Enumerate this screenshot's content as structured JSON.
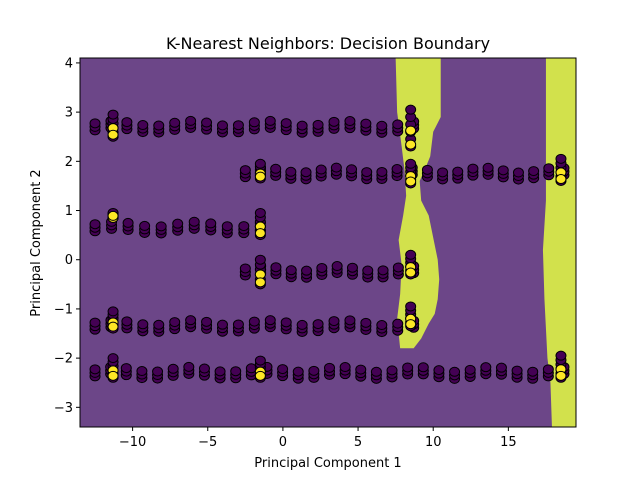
{
  "chart_data": {
    "type": "scatter",
    "title": "K-Nearest Neighbors: Decision Boundary",
    "xlabel": "Principal Component 1",
    "ylabel": "Principal Component 2",
    "xlim": [
      -13.5,
      19.5
    ],
    "ylim": [
      -3.4,
      4.1
    ],
    "x_ticks": [
      -10,
      -5,
      0,
      5,
      10,
      15
    ],
    "y_ticks": [
      -3,
      -2,
      -1,
      0,
      1,
      2,
      3,
      4
    ],
    "x_tick_labels": [
      "−10",
      "−5",
      "0",
      "5",
      "10",
      "15"
    ],
    "y_tick_labels": [
      "−3",
      "−2",
      "−1",
      "0",
      "1",
      "2",
      "3",
      "4"
    ],
    "grid": false,
    "background_region_color": "#6c4688",
    "boundary_region_color": "#d2e14c",
    "class_colors": {
      "0": "#440154",
      "1": "#fde725"
    },
    "decision_regions": [
      {
        "class": 1,
        "polygon": [
          [
            7.5,
            4.1
          ],
          [
            10.5,
            4.1
          ],
          [
            10.5,
            2.9
          ],
          [
            10.0,
            2.6
          ],
          [
            9.8,
            2.1
          ],
          [
            9.4,
            1.8
          ],
          [
            9.1,
            1.6
          ],
          [
            9.2,
            1.2
          ],
          [
            9.7,
            0.9
          ],
          [
            9.9,
            0.6
          ],
          [
            10.1,
            0.3
          ],
          [
            10.3,
            0.0
          ],
          [
            10.4,
            -0.4
          ],
          [
            10.3,
            -0.8
          ],
          [
            10.1,
            -1.1
          ],
          [
            9.7,
            -1.3
          ],
          [
            9.2,
            -1.6
          ],
          [
            8.7,
            -1.8
          ],
          [
            7.8,
            -1.8
          ],
          [
            7.6,
            -1.2
          ],
          [
            7.8,
            -0.7
          ],
          [
            7.9,
            -0.1
          ],
          [
            7.7,
            0.4
          ],
          [
            8.0,
            0.9
          ],
          [
            8.2,
            1.3
          ],
          [
            8.1,
            1.8
          ],
          [
            7.9,
            2.3
          ],
          [
            7.6,
            3.0
          ]
        ]
      },
      {
        "class": 1,
        "polygon": [
          [
            17.5,
            4.1
          ],
          [
            19.5,
            4.1
          ],
          [
            19.5,
            -3.4
          ],
          [
            17.9,
            -3.4
          ],
          [
            17.8,
            -2.5
          ],
          [
            17.6,
            -2.0
          ],
          [
            17.4,
            -0.8
          ],
          [
            17.3,
            0.2
          ],
          [
            17.5,
            1.2
          ],
          [
            17.5,
            2.5
          ]
        ]
      }
    ],
    "series": [
      {
        "name": "",
        "row_y": 2.7,
        "x_start": -12.5,
        "x_end": 8.7,
        "points": 21,
        "amplitude": 0.12
      },
      {
        "name": "",
        "row_y": 1.75,
        "x_start": -2.5,
        "x_end": 18.7,
        "points": 22,
        "amplitude": 0.12
      },
      {
        "name": "",
        "row_y": 0.65,
        "x_start": -12.5,
        "x_end": -1.5,
        "points": 11,
        "amplitude": 0.12
      },
      {
        "name": "",
        "row_y": -0.25,
        "x_start": -2.5,
        "x_end": 8.7,
        "points": 12,
        "amplitude": 0.12
      },
      {
        "name": "",
        "row_y": -1.35,
        "x_start": -12.5,
        "x_end": 8.7,
        "points": 21,
        "amplitude": 0.12
      },
      {
        "name": "",
        "row_y": -2.3,
        "x_start": -12.5,
        "x_end": 18.7,
        "points": 31,
        "amplitude": 0.12
      }
    ],
    "vertical_clusters": [
      {
        "x": -11.3,
        "y_from": 2.5,
        "y_to": 2.95,
        "class": 1
      },
      {
        "x": -11.3,
        "y_from": 0.85,
        "y_to": 0.95,
        "class": 1
      },
      {
        "x": -11.3,
        "y_from": -1.4,
        "y_to": -1.05,
        "class": 1
      },
      {
        "x": -11.3,
        "y_from": -2.4,
        "y_to": -2.0,
        "class": 1
      },
      {
        "x": -1.5,
        "y_from": 1.65,
        "y_to": 1.95,
        "class": 1
      },
      {
        "x": -1.5,
        "y_from": 0.5,
        "y_to": 0.95,
        "class": 1
      },
      {
        "x": -1.5,
        "y_from": -0.5,
        "y_to": 0.0,
        "class": 1
      },
      {
        "x": -1.5,
        "y_from": -2.4,
        "y_to": -2.05,
        "class": 1
      },
      {
        "x": 8.5,
        "y_from": 2.3,
        "y_to": 3.05,
        "class": 1
      },
      {
        "x": 8.5,
        "y_from": 1.55,
        "y_to": 1.95,
        "class": 1
      },
      {
        "x": 8.5,
        "y_from": -0.3,
        "y_to": 0.1,
        "class": 1
      },
      {
        "x": 8.5,
        "y_from": -1.35,
        "y_to": -0.95,
        "class": 1
      },
      {
        "x": 18.5,
        "y_from": 1.6,
        "y_to": 2.05,
        "class": 1
      },
      {
        "x": 18.5,
        "y_from": -2.4,
        "y_to": -1.95,
        "class": 1
      }
    ]
  }
}
